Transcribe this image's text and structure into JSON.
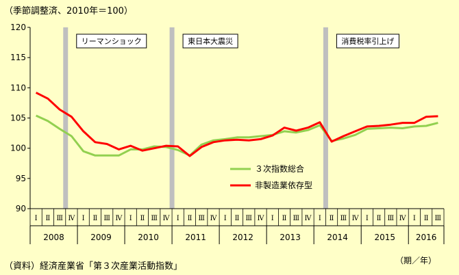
{
  "header": {
    "unit_note": "（季節調整済、2010年＝100）"
  },
  "footer": {
    "source": "（資料）経済産業省「第３次産業活動指数」",
    "axis_unit": "（期／年）"
  },
  "chart_data": {
    "type": "line",
    "ylim": [
      90,
      120
    ],
    "yticks": [
      90,
      95,
      100,
      105,
      110,
      115,
      120
    ],
    "grid": false,
    "legend_position": "center-right",
    "quarter_labels": [
      "Ⅰ",
      "Ⅱ",
      "Ⅲ",
      "Ⅳ",
      "Ⅰ",
      "Ⅱ",
      "Ⅲ",
      "Ⅳ",
      "Ⅰ",
      "Ⅱ",
      "Ⅲ",
      "Ⅳ",
      "Ⅰ",
      "Ⅱ",
      "Ⅲ",
      "Ⅳ",
      "Ⅰ",
      "Ⅱ",
      "Ⅲ",
      "Ⅳ",
      "Ⅰ",
      "Ⅱ",
      "Ⅲ",
      "Ⅳ",
      "Ⅰ",
      "Ⅱ",
      "Ⅲ",
      "Ⅳ",
      "Ⅰ",
      "Ⅱ",
      "Ⅲ",
      "Ⅳ",
      "Ⅰ",
      "Ⅱ",
      "Ⅲ"
    ],
    "years": [
      {
        "label": "2008",
        "quarters": 4
      },
      {
        "label": "2009",
        "quarters": 4
      },
      {
        "label": "2010",
        "quarters": 4
      },
      {
        "label": "2011",
        "quarters": 4
      },
      {
        "label": "2012",
        "quarters": 4
      },
      {
        "label": "2013",
        "quarters": 4
      },
      {
        "label": "2014",
        "quarters": 4
      },
      {
        "label": "2015",
        "quarters": 4
      },
      {
        "label": "2016",
        "quarters": 3
      }
    ],
    "series": [
      {
        "name": "３次指数総合",
        "color": "#92D050",
        "values": [
          105.4,
          104.5,
          103.2,
          102.0,
          99.5,
          98.8,
          98.8,
          98.8,
          99.8,
          99.8,
          100.3,
          100.2,
          99.7,
          98.8,
          100.6,
          101.3,
          101.5,
          101.8,
          101.8,
          102.0,
          102.2,
          102.8,
          102.6,
          103.0,
          103.8,
          101.2,
          101.6,
          102.2,
          103.2,
          103.3,
          103.4,
          103.3,
          103.6,
          103.7,
          104.2
        ]
      },
      {
        "name": "非製造業依存型",
        "color": "#FF0000",
        "values": [
          109.2,
          108.2,
          106.4,
          105.2,
          102.8,
          101.0,
          100.7,
          99.8,
          100.4,
          99.6,
          100.0,
          100.4,
          100.3,
          98.7,
          100.2,
          101.0,
          101.3,
          101.4,
          101.3,
          101.5,
          102.1,
          103.4,
          102.9,
          103.4,
          104.3,
          101.1,
          102.0,
          102.8,
          103.6,
          103.7,
          103.9,
          104.2,
          104.2,
          105.2,
          105.3
        ]
      }
    ],
    "annotations": [
      {
        "text": "リーマンショック",
        "quarter_index": 2.5
      },
      {
        "text": "東日本大震災",
        "quarter_index": 11.5
      },
      {
        "text": "消費税率引上げ",
        "quarter_index": 24.5
      }
    ]
  }
}
